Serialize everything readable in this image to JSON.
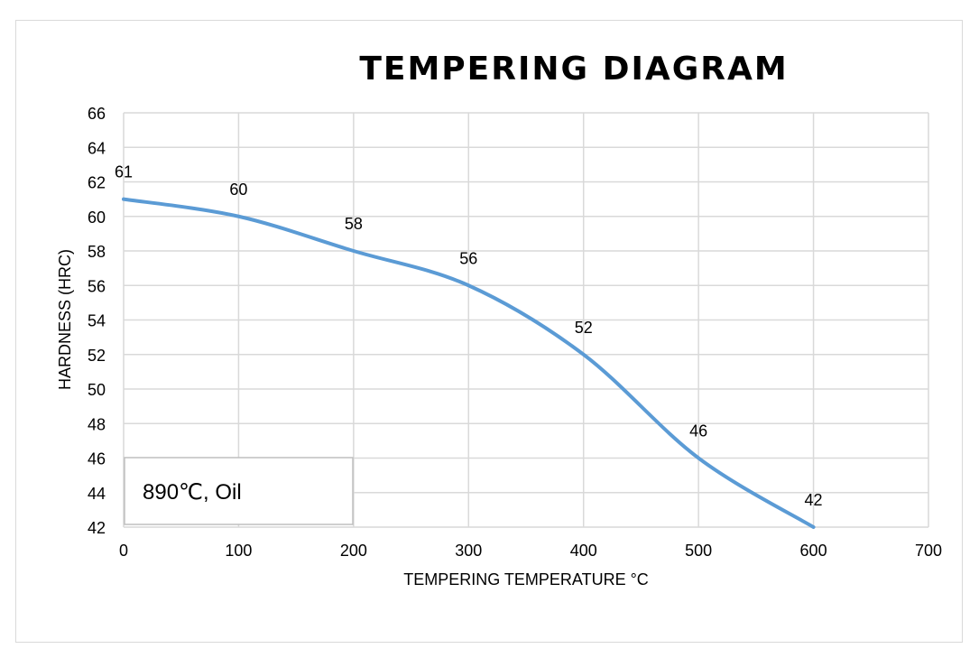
{
  "chart_data": {
    "type": "line",
    "title": "TEMPERING DIAGRAM",
    "xlabel": "TEMPERING TEMPERATURE °C",
    "ylabel": "HARDNESS (HRC)",
    "xlim": [
      0,
      700
    ],
    "ylim": [
      42,
      66
    ],
    "xticks": [
      0,
      100,
      200,
      300,
      400,
      500,
      600,
      700
    ],
    "yticks": [
      42,
      44,
      46,
      48,
      50,
      52,
      54,
      56,
      58,
      60,
      62,
      64,
      66
    ],
    "grid": true,
    "smooth": true,
    "series": [
      {
        "name": "Hardness",
        "color": "#5b9bd5",
        "x": [
          0,
          100,
          200,
          300,
          400,
          500,
          600
        ],
        "y": [
          61,
          60,
          58,
          56,
          52,
          46,
          42
        ],
        "labels": [
          "61",
          "60",
          "58",
          "56",
          "52",
          "46",
          "42"
        ]
      }
    ],
    "annotation": "890℃, Oil"
  }
}
